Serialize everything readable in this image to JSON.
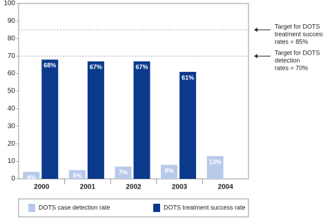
{
  "chart_data": {
    "type": "bar",
    "categories": [
      "2000",
      "2001",
      "2002",
      "2003",
      "2004"
    ],
    "series": [
      {
        "name": "DOTS case detection rate",
        "color": "#b9c9e9",
        "values": [
          4,
          5,
          7,
          8,
          13
        ],
        "value_labels": [
          "4%",
          "5%",
          "7%",
          "8%",
          "13%"
        ]
      },
      {
        "name": "DOTS treatment success rate",
        "color": "#0b3a8c",
        "values": [
          68,
          67,
          67,
          61,
          null
        ],
        "value_labels": [
          "68%",
          "67%",
          "67%",
          "61%",
          null
        ]
      }
    ],
    "ylim": [
      0,
      100
    ],
    "yticks": [
      0,
      10,
      20,
      30,
      40,
      50,
      60,
      70,
      80,
      90,
      100
    ],
    "targets": [
      {
        "value": 85,
        "lines": [
          "Target for DOTS",
          "treatment success",
          "rates = 85%"
        ]
      },
      {
        "value": 70,
        "lines": [
          "Target for DOTS",
          "detection",
          "rates = 70%"
        ]
      }
    ]
  }
}
